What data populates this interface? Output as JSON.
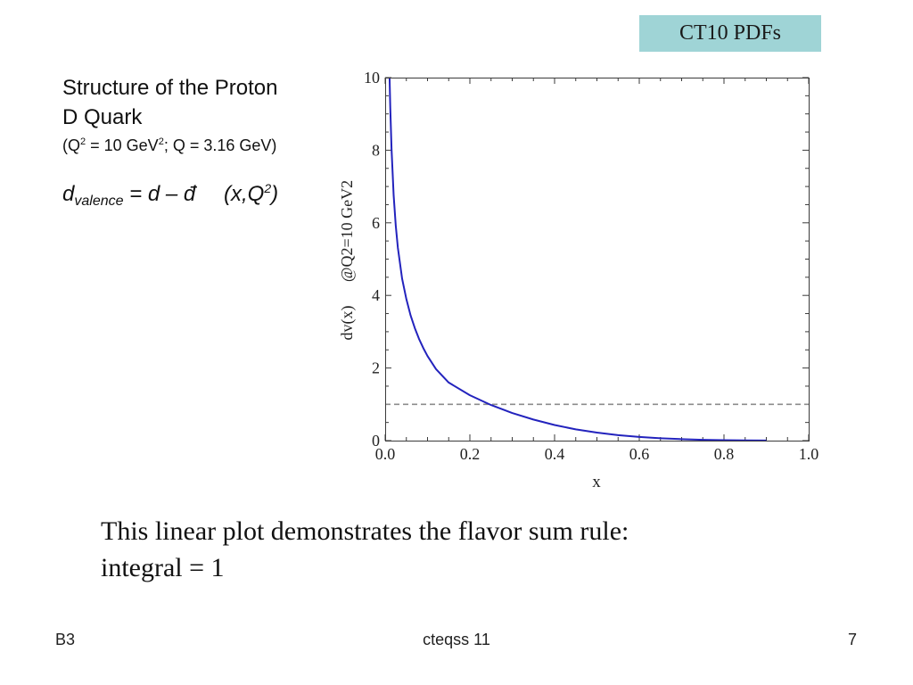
{
  "slide": {
    "tag": "CT10 PDFs",
    "heading": {
      "line1": "Structure of the Proton",
      "line2": "D Quark"
    },
    "conditions": {
      "open": "(Q",
      "q_power": "2",
      "value": " = 10 GeV",
      "unit_power": "2",
      "rest": "; Q = 3.16 GeV)"
    },
    "formula": {
      "symbol": "d",
      "subscript": "valence",
      "expression": " = d – đ",
      "args_open": "(x,Q",
      "args_power": "2",
      "args_close": ")"
    },
    "body": {
      "line1": "This linear plot demonstrates the flavor sum rule:",
      "line2": "integral = 1"
    },
    "footer": {
      "left": "B3",
      "center": "cteqss 11",
      "right": "7"
    }
  },
  "colors": {
    "tag_background": "#9fd4d6",
    "frame": "#3a3a3a"
  },
  "chart_data": {
    "type": "line",
    "xlabel": "x",
    "ylabel": "dv(x)",
    "ylabel_condition": "@Q2=10 GeV2",
    "xlim": [
      0,
      1
    ],
    "ylim": [
      0,
      10
    ],
    "x_ticks": [
      0,
      0.2,
      0.4,
      0.6,
      0.8,
      1.0
    ],
    "x_tick_labels": [
      "0.0",
      "0.2",
      "0.4",
      "0.6",
      "0.8",
      "1.0"
    ],
    "y_ticks": [
      0,
      2,
      4,
      6,
      8,
      10
    ],
    "y_tick_labels": [
      "0",
      "2",
      "4",
      "6",
      "8",
      "10"
    ],
    "grid": false,
    "series": [
      {
        "x": [
          0.0104,
          0.012,
          0.015,
          0.02,
          0.025,
          0.03,
          0.04,
          0.05,
          0.06,
          0.07,
          0.08,
          0.09,
          0.1,
          0.12,
          0.15,
          0.2,
          0.25,
          0.3,
          0.35,
          0.4,
          0.45,
          0.5,
          0.55,
          0.6,
          0.65,
          0.7,
          0.75,
          0.8,
          0.85,
          0.9
        ],
        "y": [
          10.0,
          9.19,
          8.04,
          6.76,
          5.92,
          5.31,
          4.46,
          3.9,
          3.45,
          3.1,
          2.8,
          2.55,
          2.33,
          1.97,
          1.6,
          1.25,
          0.98,
          0.76,
          0.58,
          0.43,
          0.31,
          0.22,
          0.15,
          0.1,
          0.065,
          0.04,
          0.022,
          0.011,
          0.005,
          0.002
        ],
        "color": "#2323bd"
      }
    ],
    "reference_line": {
      "y": 1,
      "dashed": true,
      "color": "#8c8c8c"
    }
  }
}
